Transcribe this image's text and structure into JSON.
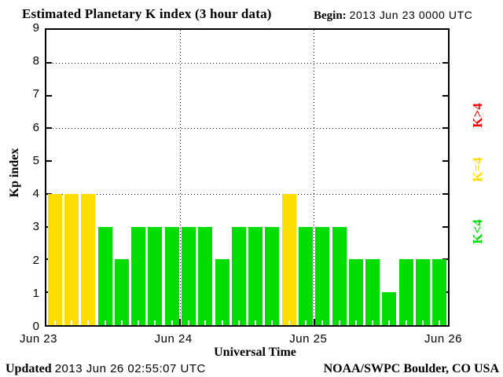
{
  "header": {
    "title": "Estimated Planetary K index (3 hour data)",
    "begin_label": "Begin:",
    "begin_value": "2013 Jun 23 0000 UTC"
  },
  "chart_data": {
    "type": "bar",
    "title": "Estimated Planetary K index (3 hour data)",
    "xlabel": "Universal Time",
    "ylabel": "Kp index",
    "ylim": [
      0,
      9
    ],
    "y_ticks": [
      0,
      1,
      2,
      3,
      4,
      5,
      6,
      7,
      8,
      9
    ],
    "h_gridlines": [
      4,
      6,
      8
    ],
    "x_day_labels": [
      "Jun 23",
      "Jun 24",
      "Jun 25",
      "Jun 26"
    ],
    "bars_per_day": 8,
    "bar_interval_hours": 3,
    "values": [
      4,
      4,
      4,
      3,
      2,
      3,
      3,
      3,
      3,
      3,
      2,
      3,
      3,
      3,
      4,
      3,
      3,
      3,
      2,
      2,
      1,
      2,
      2,
      2
    ],
    "colors": {
      "green": "#00DD00",
      "yellow": "#FFDD00",
      "red": "#FF0000"
    },
    "color_rule": "K<4 green, K=4 yellow, K>4 red"
  },
  "legend": [
    {
      "label": "K>4",
      "color": "#FF0000"
    },
    {
      "label": "K=4",
      "color": "#FFDD00"
    },
    {
      "label": "K<4",
      "color": "#00DD00"
    }
  ],
  "footer": {
    "updated_label": "Updated",
    "updated_value": "2013 Jun 26 02:55:07 UTC",
    "credit": "NOAA/SWPC Boulder, CO USA"
  }
}
